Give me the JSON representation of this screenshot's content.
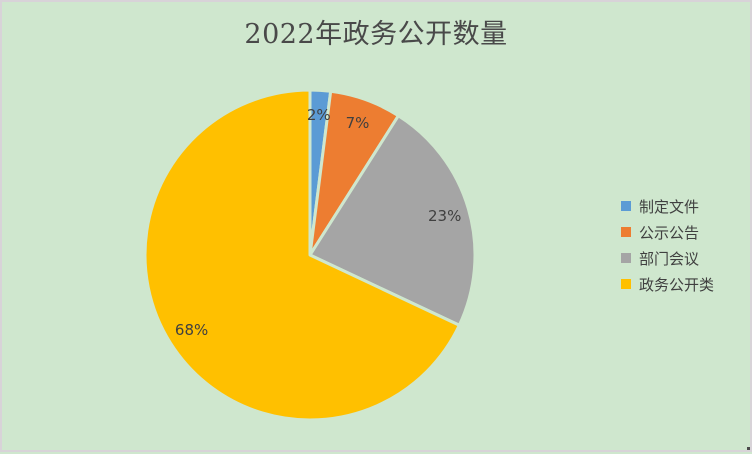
{
  "window": {
    "background": "#cfe7ce",
    "border_color": "#d8d3d8"
  },
  "chart_data": {
    "type": "pie",
    "title": "2022年政务公开数量",
    "title_color": "#494949",
    "categories": [
      "制定文件",
      "公示公告",
      "部门会议",
      "政务公开类"
    ],
    "values": [
      2,
      7,
      23,
      68
    ],
    "data_labels": [
      "2%",
      "7%",
      "23%",
      "68%"
    ],
    "colors": [
      "#5b9bd5",
      "#ed7d31",
      "#a5a5a5",
      "#ffc000"
    ],
    "label_color": "#404040",
    "legend_text_color": "#404040",
    "start_angle_deg": 0,
    "direction": "clockwise",
    "legend_position": "right",
    "slice_gap_color": "#cfe7ce"
  }
}
